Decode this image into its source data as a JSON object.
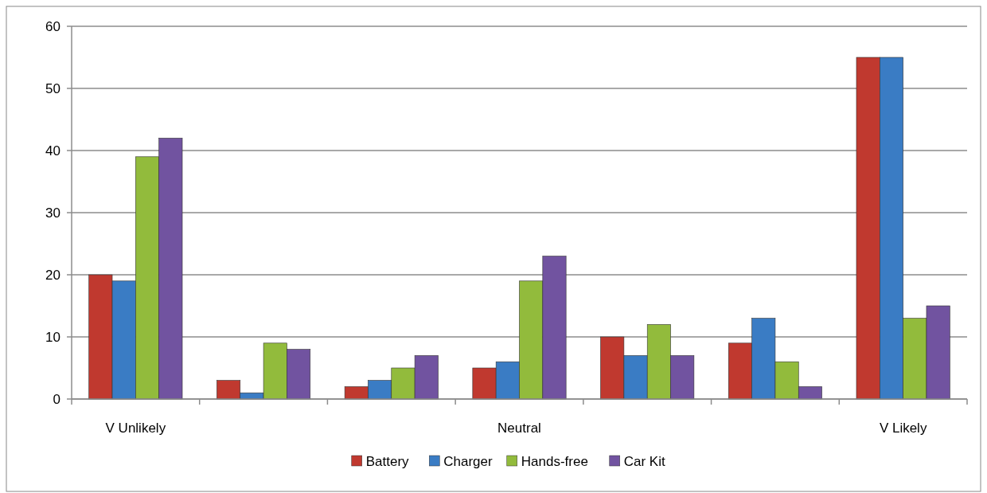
{
  "chart_data": {
    "type": "bar",
    "categories": [
      "V Unlikely",
      null,
      null,
      "Neutral",
      null,
      null,
      "V Likely"
    ],
    "series": [
      {
        "name": "Battery",
        "color": "#c0392f",
        "values": [
          20,
          3,
          2,
          5,
          10,
          9,
          55
        ]
      },
      {
        "name": "Charger",
        "color": "#3a7cc4",
        "values": [
          19,
          1,
          3,
          6,
          7,
          13,
          55
        ]
      },
      {
        "name": "Hands-free",
        "color": "#92bb3c",
        "values": [
          39,
          9,
          5,
          19,
          12,
          6,
          13
        ]
      },
      {
        "name": "Car Kit",
        "color": "#7153a0",
        "values": [
          42,
          8,
          7,
          23,
          7,
          2,
          15
        ]
      }
    ],
    "ylim": [
      0,
      60
    ],
    "yticks": [
      0,
      10,
      20,
      30,
      40,
      50,
      60
    ],
    "grid": "y",
    "legend": "bottom"
  }
}
